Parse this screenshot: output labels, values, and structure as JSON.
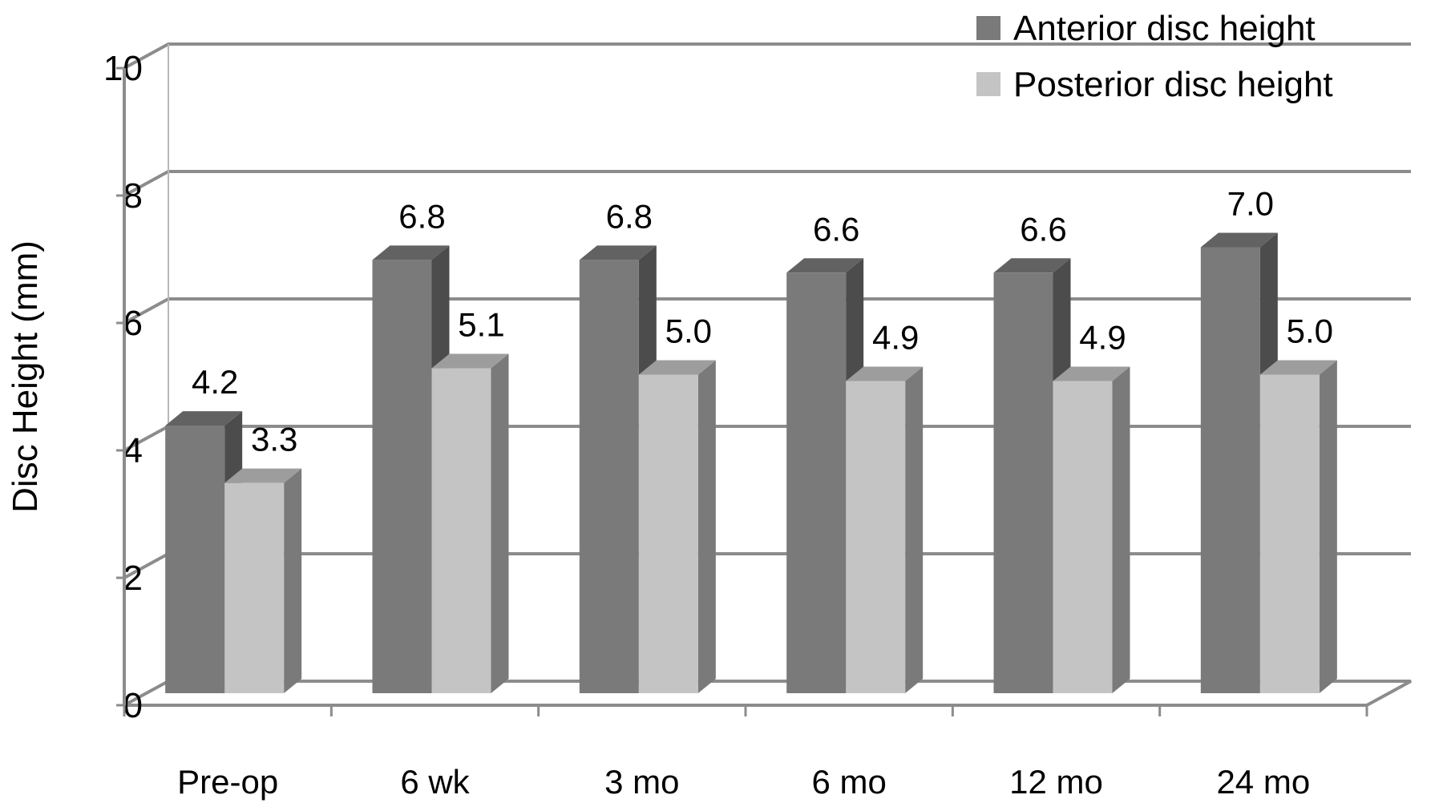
{
  "chart_data": {
    "type": "bar",
    "style": "3d-clustered-column",
    "categories": [
      "Pre-op",
      "6 wk",
      "3 mo",
      "6 mo",
      "12 mo",
      "24 mo"
    ],
    "series": [
      {
        "name": "Anterior disc height",
        "values": [
          4.2,
          6.8,
          6.8,
          6.6,
          6.6,
          7.0
        ],
        "color": "#7a7a7a"
      },
      {
        "name": "Posterior disc height",
        "values": [
          3.3,
          5.1,
          5.0,
          4.9,
          4.9,
          5.0
        ],
        "color": "#c4c4c4"
      }
    ],
    "data_labels": [
      [
        "4.2",
        "6.8",
        "6.8",
        "6.6",
        "6.6",
        "7.0"
      ],
      [
        "3.3",
        "5.1",
        "5.0",
        "4.9",
        "4.9",
        "5.0"
      ]
    ],
    "ylabel": "Disc Height (mm)",
    "xlabel": "",
    "ylim": [
      0,
      10
    ],
    "yticks": [
      "0",
      "2",
      "4",
      "6",
      "8",
      "10"
    ],
    "grid": true,
    "legend_position": "top-right"
  }
}
